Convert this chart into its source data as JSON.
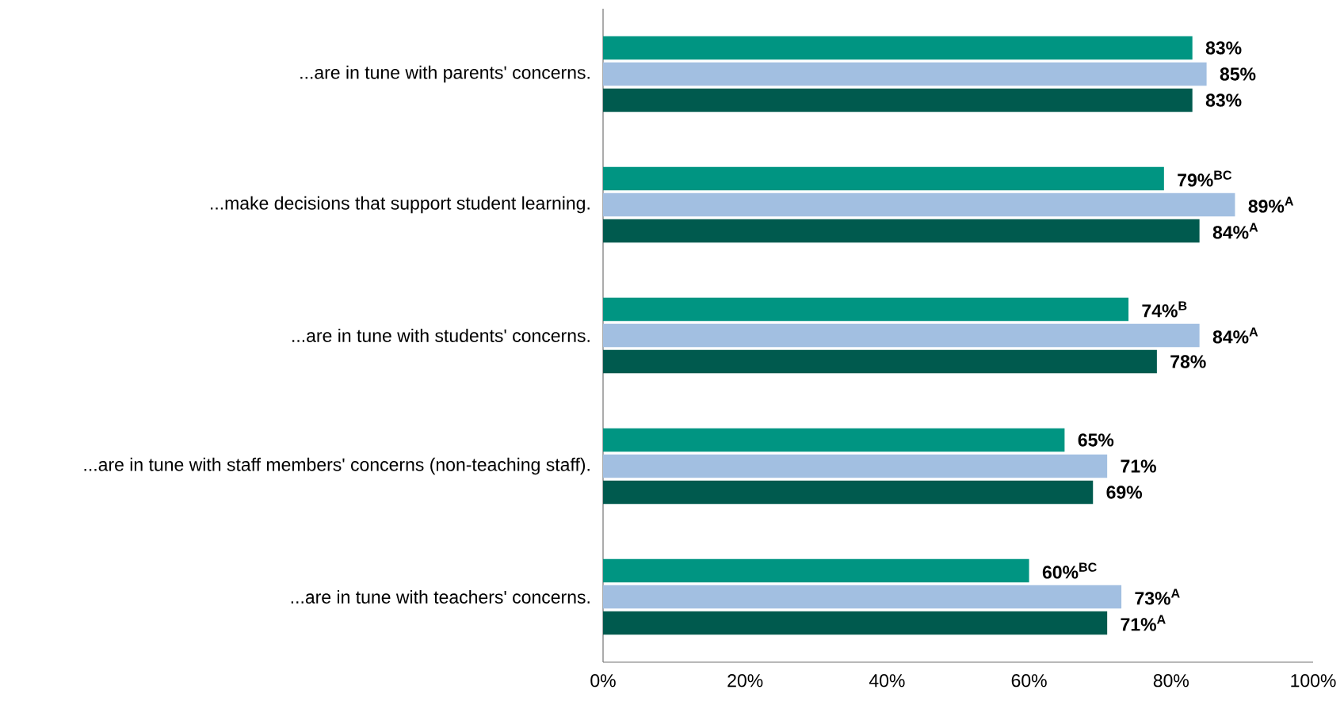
{
  "chart_data": {
    "type": "bar",
    "orientation": "horizontal",
    "categories": [
      "...are in tune with parents' concerns.",
      "...make decisions that support student learning.",
      "...are in tune with students' concerns.",
      "...are in tune with staff members' concerns (non-teaching staff).",
      "...are in tune with teachers' concerns."
    ],
    "series": [
      {
        "color": "#009582",
        "values": [
          83,
          79,
          74,
          65,
          60
        ],
        "value_labels": [
          "83%",
          "79%$^{BC}$",
          "74%$^{B}$",
          "65%",
          "60%$^{BC}$"
        ]
      },
      {
        "color": "#a2bfe1",
        "values": [
          85,
          89,
          84,
          71,
          73
        ],
        "value_labels": [
          "85%",
          "89%$^{A}$",
          "84%$^{A}$",
          "71%",
          "73%$^{A}$"
        ]
      },
      {
        "color": "#005a4e",
        "values": [
          83,
          84,
          78,
          69,
          71
        ],
        "value_labels": [
          "83%",
          "84%$^{A}$",
          "78%",
          "69%",
          "71%$^{A}$"
        ]
      }
    ],
    "xlim": [
      0,
      100
    ],
    "xticks": [
      {
        "value": 0,
        "label": "0%"
      },
      {
        "value": 20,
        "label": "20%"
      },
      {
        "value": 40,
        "label": "40%"
      },
      {
        "value": 60,
        "label": "60%"
      },
      {
        "value": 80,
        "label": "80%"
      },
      {
        "value": 100,
        "label": "100%"
      }
    ]
  }
}
